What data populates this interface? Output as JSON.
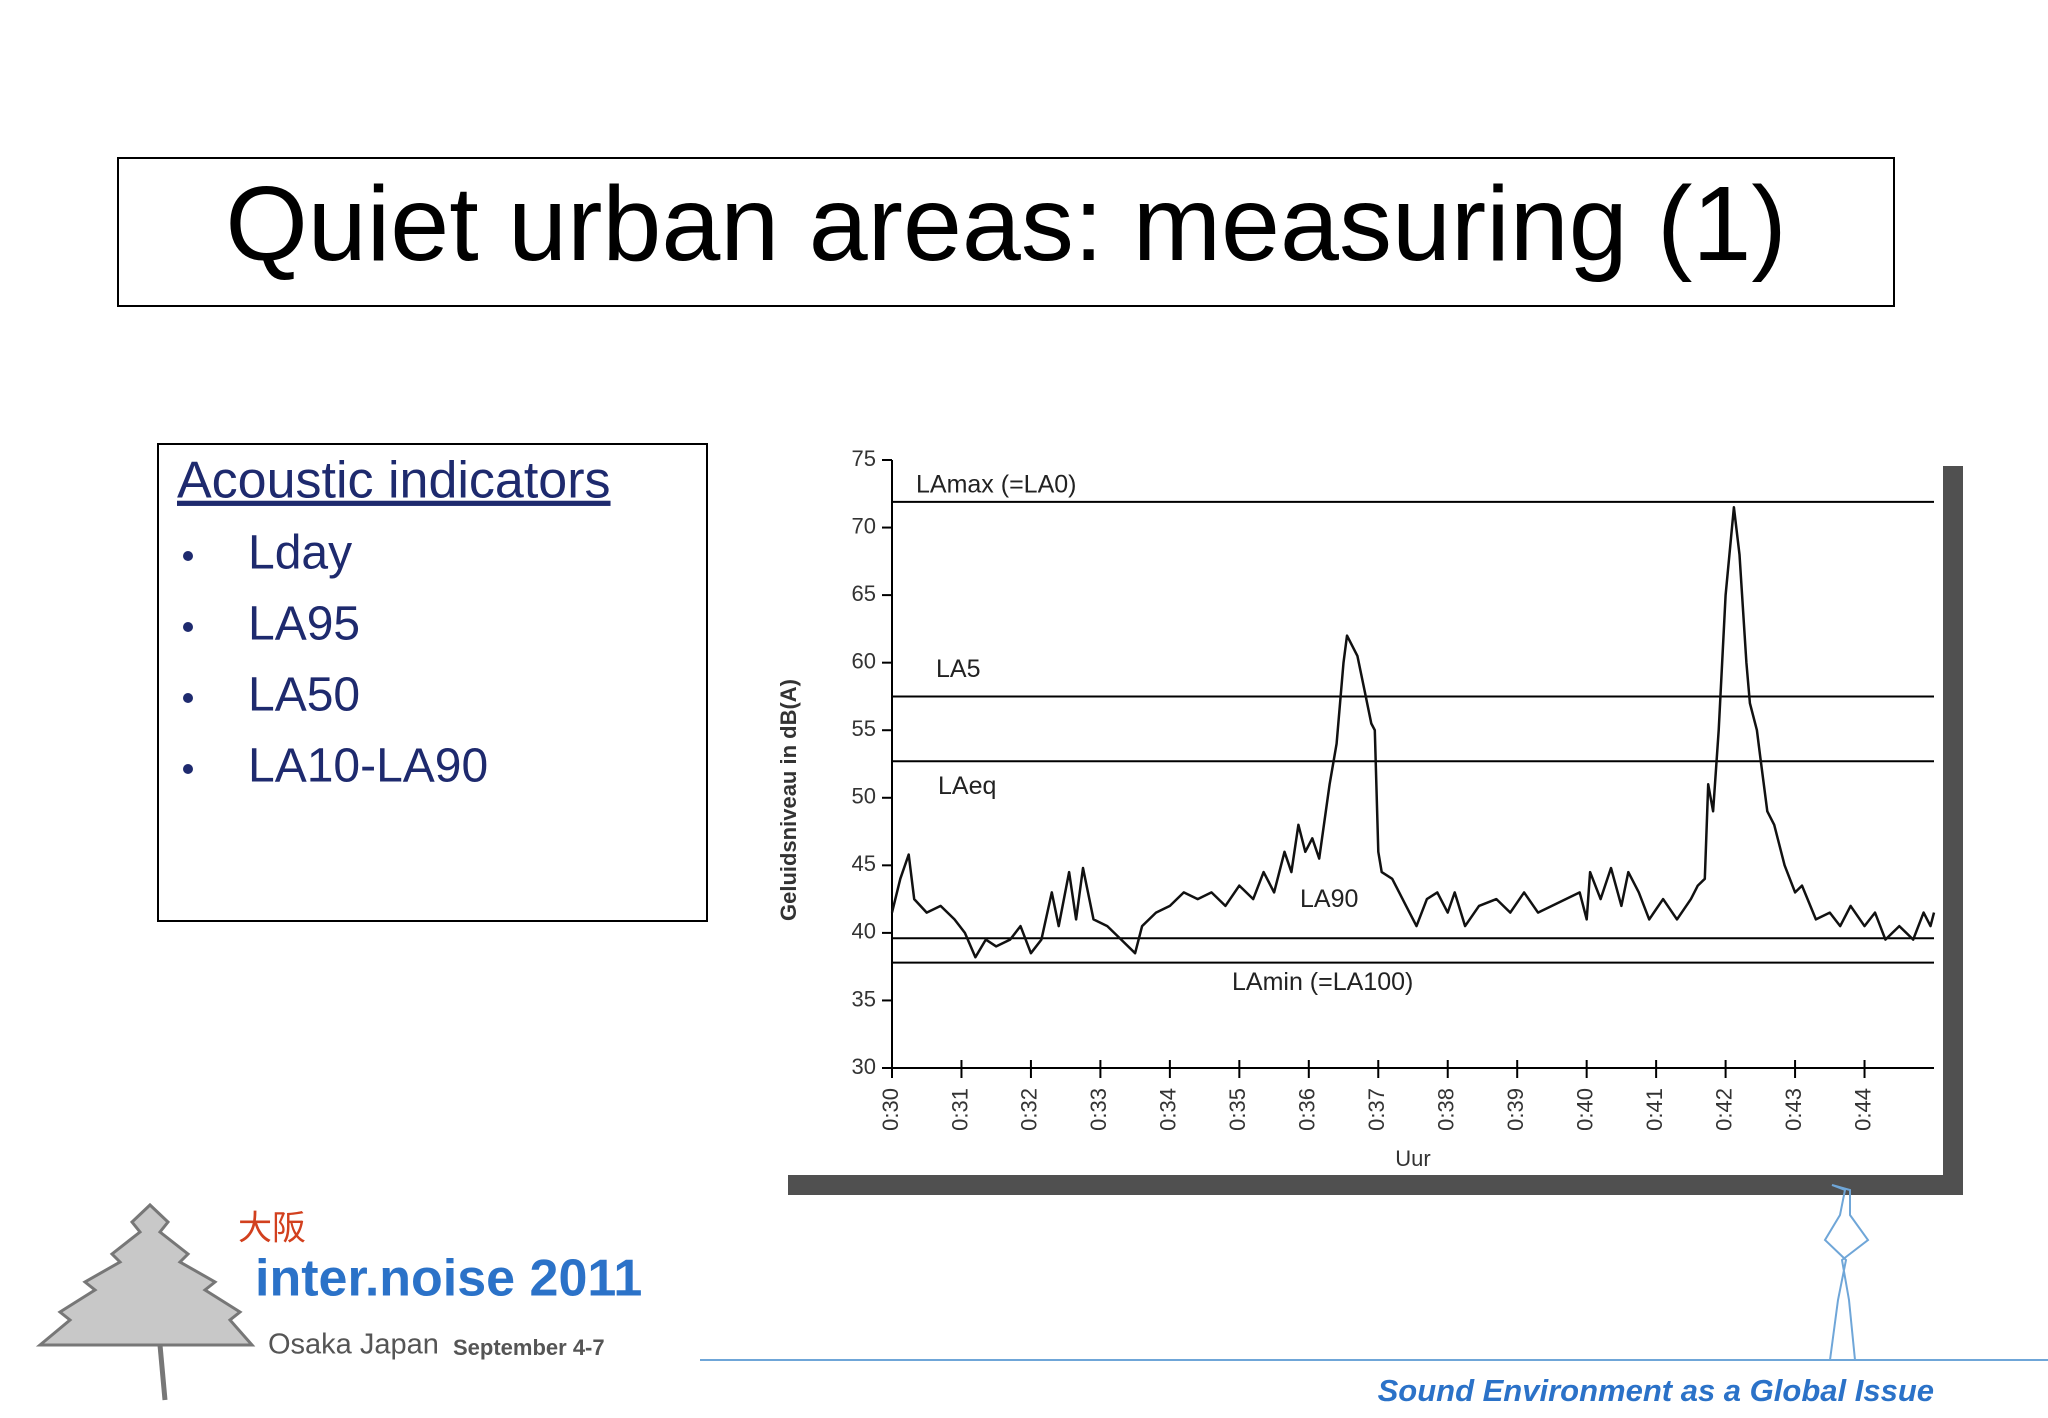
{
  "title": "Quiet urban areas: measuring (1)",
  "indicators": {
    "heading": "Acoustic indicators",
    "items": [
      "Lday",
      "LA95",
      "LA50",
      "LA10-LA90"
    ]
  },
  "chart_data": {
    "type": "line",
    "xlabel": "Uur",
    "ylabel": "Geluidsniveau in dB(A)",
    "color": "#111111",
    "xlim": [
      30,
      45
    ],
    "xticks": [
      {
        "value": 30,
        "label": "0:30"
      },
      {
        "value": 31,
        "label": "0:31"
      },
      {
        "value": 32,
        "label": "0:32"
      },
      {
        "value": 33,
        "label": "0:33"
      },
      {
        "value": 34,
        "label": "0:34"
      },
      {
        "value": 35,
        "label": "0:35"
      },
      {
        "value": 36,
        "label": "0:36"
      },
      {
        "value": 37,
        "label": "0:37"
      },
      {
        "value": 38,
        "label": "0:38"
      },
      {
        "value": 39,
        "label": "0:39"
      },
      {
        "value": 40,
        "label": "0:40"
      },
      {
        "value": 41,
        "label": "0:41"
      },
      {
        "value": 42,
        "label": "0:42"
      },
      {
        "value": 43,
        "label": "0:43"
      },
      {
        "value": 44,
        "label": "0:44"
      }
    ],
    "ylim": [
      30,
      75
    ],
    "yticks": [
      30,
      35,
      40,
      45,
      50,
      55,
      60,
      65,
      70,
      75
    ],
    "reference_lines": [
      {
        "label": "LAmax (=LA0)",
        "value": 71.9
      },
      {
        "label": "LA5",
        "value": 57.5
      },
      {
        "label": "LAeq",
        "value": 52.7
      },
      {
        "label": "LA90",
        "value": 39.6
      },
      {
        "label": "LAmin (=LA100)",
        "value": 37.8
      }
    ],
    "x": [
      30.0,
      30.12,
      30.24,
      30.32,
      30.5,
      30.7,
      30.9,
      31.05,
      31.2,
      31.35,
      31.5,
      31.7,
      31.85,
      32.0,
      32.15,
      32.3,
      32.4,
      32.55,
      32.65,
      32.75,
      32.9,
      33.1,
      33.3,
      33.5,
      33.6,
      33.8,
      34.0,
      34.2,
      34.4,
      34.6,
      34.8,
      35.0,
      35.2,
      35.35,
      35.5,
      35.65,
      35.75,
      35.85,
      35.95,
      36.05,
      36.15,
      36.3,
      36.4,
      36.5,
      36.55,
      36.7,
      36.8,
      36.9,
      36.95,
      37.0,
      37.05,
      37.2,
      37.4,
      37.55,
      37.7,
      37.85,
      38.0,
      38.1,
      38.25,
      38.45,
      38.7,
      38.9,
      39.1,
      39.3,
      39.5,
      39.7,
      39.9,
      40.0,
      40.05,
      40.2,
      40.35,
      40.5,
      40.6,
      40.75,
      40.9,
      41.1,
      41.3,
      41.5,
      41.6,
      41.7,
      41.75,
      41.82,
      41.9,
      42.0,
      42.12,
      42.2,
      42.3,
      42.35,
      42.45,
      42.5,
      42.6,
      42.7,
      42.85,
      43.0,
      43.1,
      43.3,
      43.5,
      43.65,
      43.8,
      44.0,
      44.15,
      44.3,
      44.5,
      44.7,
      44.85,
      44.95,
      45.0
    ],
    "values": [
      41.5,
      44,
      45.8,
      42.5,
      41.5,
      42,
      41,
      40,
      38.2,
      39.5,
      39,
      39.5,
      40.5,
      38.5,
      39.5,
      43,
      40.5,
      44.5,
      41,
      44.8,
      41,
      40.5,
      39.5,
      38.5,
      40.5,
      41.5,
      42,
      43,
      42.5,
      43,
      42,
      43.5,
      42.5,
      44.5,
      43,
      46,
      44.5,
      48,
      46,
      47,
      45.5,
      51,
      54,
      60,
      62,
      60.5,
      58,
      55.5,
      55,
      46,
      44.5,
      44,
      42,
      40.5,
      42.5,
      43,
      41.5,
      43,
      40.5,
      42,
      42.5,
      41.5,
      43,
      41.5,
      42,
      42.5,
      43,
      41,
      44.5,
      42.5,
      44.8,
      42,
      44.5,
      43,
      41,
      42.5,
      41,
      42.5,
      43.5,
      44,
      51,
      49,
      55,
      65,
      71.5,
      68,
      60,
      57,
      55,
      53,
      49,
      48,
      45,
      43,
      43.5,
      41,
      41.5,
      40.5,
      42,
      40.5,
      41.5,
      39.5,
      40.5,
      39.5,
      41.5,
      40.5,
      41.5
    ]
  },
  "footer": {
    "kanji": "大阪",
    "event": "inter.noise 2011",
    "location": "Osaka Japan",
    "dates": "September 4-7",
    "theme": "Sound Environment as a Global Issue"
  }
}
